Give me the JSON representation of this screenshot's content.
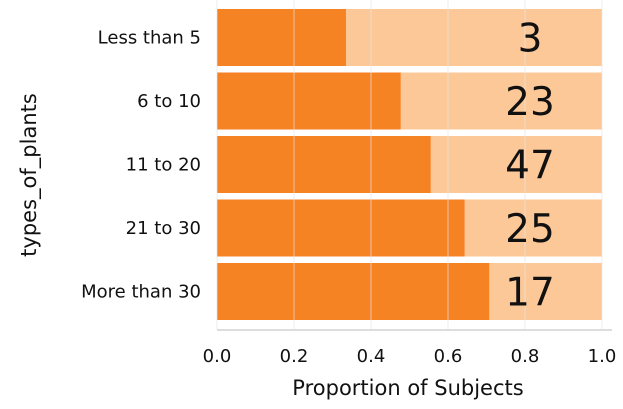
{
  "chart_data": {
    "type": "bar",
    "orientation": "horizontal",
    "stacked_proportion": true,
    "title": "",
    "xlabel": "Proportion of Subjects",
    "ylabel": "types_of_plants",
    "xlim": [
      0.0,
      1.0
    ],
    "x_ticks": [
      "0.0",
      "0.2",
      "0.4",
      "0.6",
      "0.8",
      "1.0"
    ],
    "grid": "vertical",
    "categories": [
      "Less than 5",
      "6 to 10",
      "11 to 20",
      "21 to 30",
      "More than 30"
    ],
    "values": [
      0.335,
      0.477,
      0.555,
      0.643,
      0.707
    ],
    "counts": [
      "3",
      "23",
      "47",
      "25",
      "17"
    ],
    "colors": {
      "bar": "#f58223",
      "remainder": "#fdc897",
      "grid": "#e6e6e6",
      "axis": "#dddddd"
    }
  }
}
